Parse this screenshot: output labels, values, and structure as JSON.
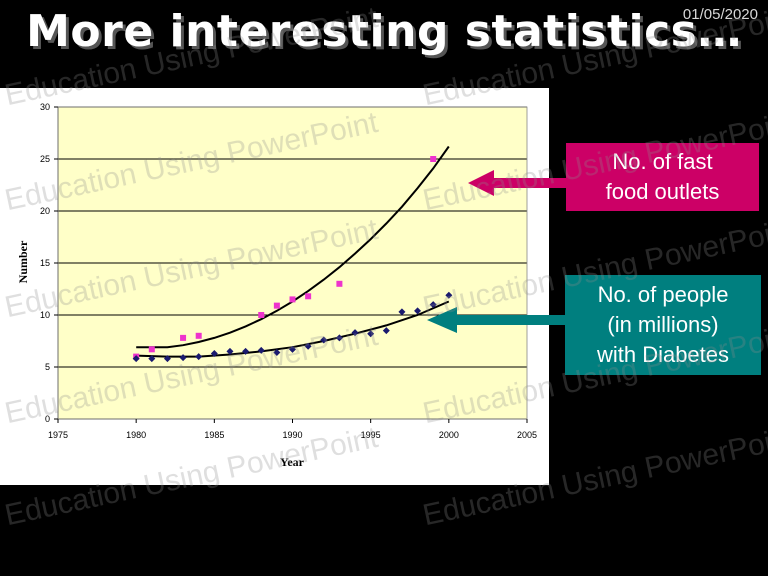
{
  "date": "01/05/2020",
  "title": "More interesting statistics…",
  "callouts": {
    "fast_food": [
      "No. of fast",
      "food outlets"
    ],
    "diabetes": [
      "No. of people",
      "(in millions)",
      "with Diabetes"
    ]
  },
  "colors": {
    "fast_food": "#cc0066",
    "diabetes": "#007f7f",
    "plot_bg": "#ffffc8",
    "fast_points": "#ee33cc",
    "diab_points": "#1a1a6e"
  },
  "watermark": "Education Using PowerPoint",
  "chart_data": {
    "type": "scatter",
    "xlabel": "Year",
    "ylabel": "Number",
    "xlim": [
      1975,
      2005
    ],
    "ylim": [
      0,
      30
    ],
    "x_ticks": [
      "1975",
      "1980",
      "1985",
      "1990",
      "1995",
      "2000",
      "2005"
    ],
    "y_ticks": [
      "0",
      "5",
      "10",
      "15",
      "20",
      "25",
      "30"
    ],
    "grid": "horizontal",
    "legend": "none",
    "series": [
      {
        "marker": "square",
        "points": [
          [
            1980,
            6
          ],
          [
            1981,
            6.7
          ],
          [
            1983,
            7.8
          ],
          [
            1984,
            8
          ],
          [
            1988,
            10
          ],
          [
            1989,
            10.9
          ],
          [
            1990,
            11.5
          ],
          [
            1991,
            11.8
          ],
          [
            1993,
            13
          ],
          [
            1999,
            25
          ]
        ],
        "trend": [
          [
            1980,
            6.9
          ],
          [
            1981,
            6.9
          ],
          [
            1982,
            6.9
          ],
          [
            1983,
            7.1
          ],
          [
            1984,
            7.4
          ],
          [
            1985,
            7.8
          ],
          [
            1986,
            8.3
          ],
          [
            1987,
            8.9
          ],
          [
            1988,
            9.6
          ],
          [
            1989,
            10.4
          ],
          [
            1990,
            11.3
          ],
          [
            1991,
            12.3
          ],
          [
            1992,
            13.4
          ],
          [
            1993,
            14.6
          ],
          [
            1994,
            15.9
          ],
          [
            1995,
            17.3
          ],
          [
            1996,
            18.8
          ],
          [
            1997,
            20.4
          ],
          [
            1998,
            22.2
          ],
          [
            1999,
            24.1
          ],
          [
            2000,
            26.2
          ]
        ]
      },
      {
        "marker": "diamond",
        "points": [
          [
            1980,
            5.8
          ],
          [
            1981,
            5.8
          ],
          [
            1982,
            5.8
          ],
          [
            1983,
            5.9
          ],
          [
            1984,
            6
          ],
          [
            1985,
            6.3
          ],
          [
            1986,
            6.5
          ],
          [
            1987,
            6.5
          ],
          [
            1988,
            6.6
          ],
          [
            1989,
            6.4
          ],
          [
            1990,
            6.7
          ],
          [
            1991,
            7
          ],
          [
            1992,
            7.6
          ],
          [
            1993,
            7.8
          ],
          [
            1994,
            8.3
          ],
          [
            1995,
            8.2
          ],
          [
            1996,
            8.5
          ],
          [
            1997,
            10.3
          ],
          [
            1998,
            10.4
          ],
          [
            1999,
            11
          ],
          [
            2000,
            11.9
          ]
        ],
        "trend": [
          [
            1980,
            6.1
          ],
          [
            1982,
            6.0
          ],
          [
            1984,
            6.0
          ],
          [
            1986,
            6.2
          ],
          [
            1988,
            6.5
          ],
          [
            1990,
            6.9
          ],
          [
            1992,
            7.5
          ],
          [
            1994,
            8.2
          ],
          [
            1996,
            9.0
          ],
          [
            1998,
            10.0
          ],
          [
            2000,
            11.3
          ]
        ]
      }
    ]
  }
}
